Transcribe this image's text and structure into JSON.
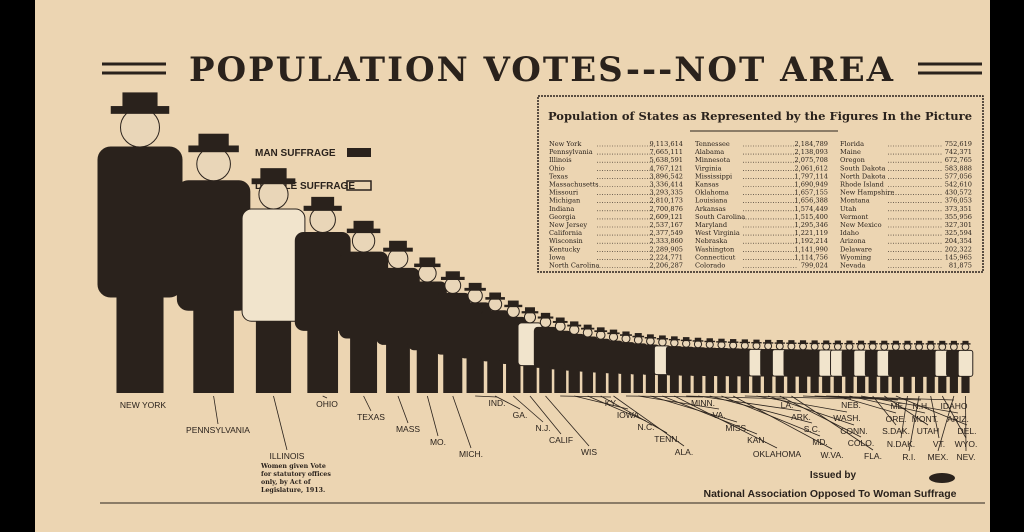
{
  "title": "POPULATION VOTES---NOT AREA",
  "legend": [
    "MAN SUFFRAGE",
    "DOUBLE SUFFRAGE"
  ],
  "table": {
    "title": "Population of States as Represented by the Figures In the Picture",
    "columns": [
      [
        [
          "New York",
          "9,113,614"
        ],
        [
          "Pennsylvania",
          "7,665,111"
        ],
        [
          "Illinois",
          "5,638,591"
        ],
        [
          "Ohio",
          "4,767,121"
        ],
        [
          "Texas",
          "3,896,542"
        ],
        [
          "Massachusetts",
          "3,336,414"
        ],
        [
          "Missouri",
          "3,293,335"
        ],
        [
          "Michigan",
          "2,810,173"
        ],
        [
          "Indiana",
          "2,700,876"
        ],
        [
          "Georgia",
          "2,609,121"
        ],
        [
          "New Jersey",
          "2,537,167"
        ],
        [
          "California",
          "2,377,549"
        ],
        [
          "Wisconsin",
          "2,333,860"
        ],
        [
          "Kentucky",
          "2,289,905"
        ],
        [
          "Iowa",
          "2,224,771"
        ],
        [
          "North Carolina",
          "2,206,287"
        ]
      ],
      [
        [
          "Tennessee",
          "2,184,789"
        ],
        [
          "Alabama",
          "2,138,093"
        ],
        [
          "Minnesota",
          "2,075,708"
        ],
        [
          "Virginia",
          "2,061,612"
        ],
        [
          "Mississippi",
          "1,797,114"
        ],
        [
          "Kansas",
          "1,690,949"
        ],
        [
          "Oklahoma",
          "1,657,155"
        ],
        [
          "Louisiana",
          "1,656,388"
        ],
        [
          "Arkansas",
          "1,574,449"
        ],
        [
          "South Carolina",
          "1,515,400"
        ],
        [
          "Maryland",
          "1,295,346"
        ],
        [
          "West Virginia",
          "1,221,119"
        ],
        [
          "Nebraska",
          "1,192,214"
        ],
        [
          "Washington",
          "1,141,990"
        ],
        [
          "Connecticut",
          "1,114,756"
        ],
        [
          "Colorado",
          "799,024"
        ]
      ],
      [
        [
          "Florida",
          "752,619"
        ],
        [
          "Maine",
          "742,371"
        ],
        [
          "Oregon",
          "672,765"
        ],
        [
          "South Dakota",
          "583,888"
        ],
        [
          "North Dakota",
          "577,056"
        ],
        [
          "Rhode Island",
          "542,610"
        ],
        [
          "New Hampshire",
          "430,572"
        ],
        [
          "Montana",
          "376,053"
        ],
        [
          "Utah",
          "373,351"
        ],
        [
          "Vermont",
          "355,956"
        ],
        [
          "New Mexico",
          "327,301"
        ],
        [
          "Idaho",
          "325,594"
        ],
        [
          "Arizona",
          "204,354"
        ],
        [
          "Delaware",
          "202,322"
        ],
        [
          "Wyoming",
          "145,965"
        ],
        [
          "Nevada",
          "81,875"
        ]
      ]
    ]
  },
  "figure_labels": [
    "NEW YORK",
    "PENNSYLVANIA",
    "ILLINOIS",
    "OHIO",
    "TEXAS",
    "MASS",
    "MO.",
    "MICH.",
    "IND.",
    "GA.",
    "N.J.",
    "CALIF",
    "WIS",
    "KY.",
    "IOWA",
    "N.C.",
    "TENN.",
    "ALA.",
    "MINN.",
    "VA.",
    "MISS.",
    "KAN.",
    "OKLAHOMA",
    "LA.",
    "ARK.",
    "S.C.",
    "MD.",
    "W.VA.",
    "NEB.",
    "WASH.",
    "CONN.",
    "COLO.",
    "FLA.",
    "ME.",
    "N.H.",
    "IDAHO",
    "ORE.",
    "MONT.",
    "ARIZ.",
    "S.DAK.",
    "UTAH",
    "DEL.",
    "N.DAK.",
    "R.I.",
    "VT.",
    "WYO.",
    "MEX.",
    "NEV."
  ],
  "illinois_note": [
    "Women given Vote",
    "for statutory offices",
    "only, by Act of",
    "Legislature, 1913."
  ],
  "issued_by": "Issued by",
  "publisher": "National Association Opposed To Woman Suffrage"
}
